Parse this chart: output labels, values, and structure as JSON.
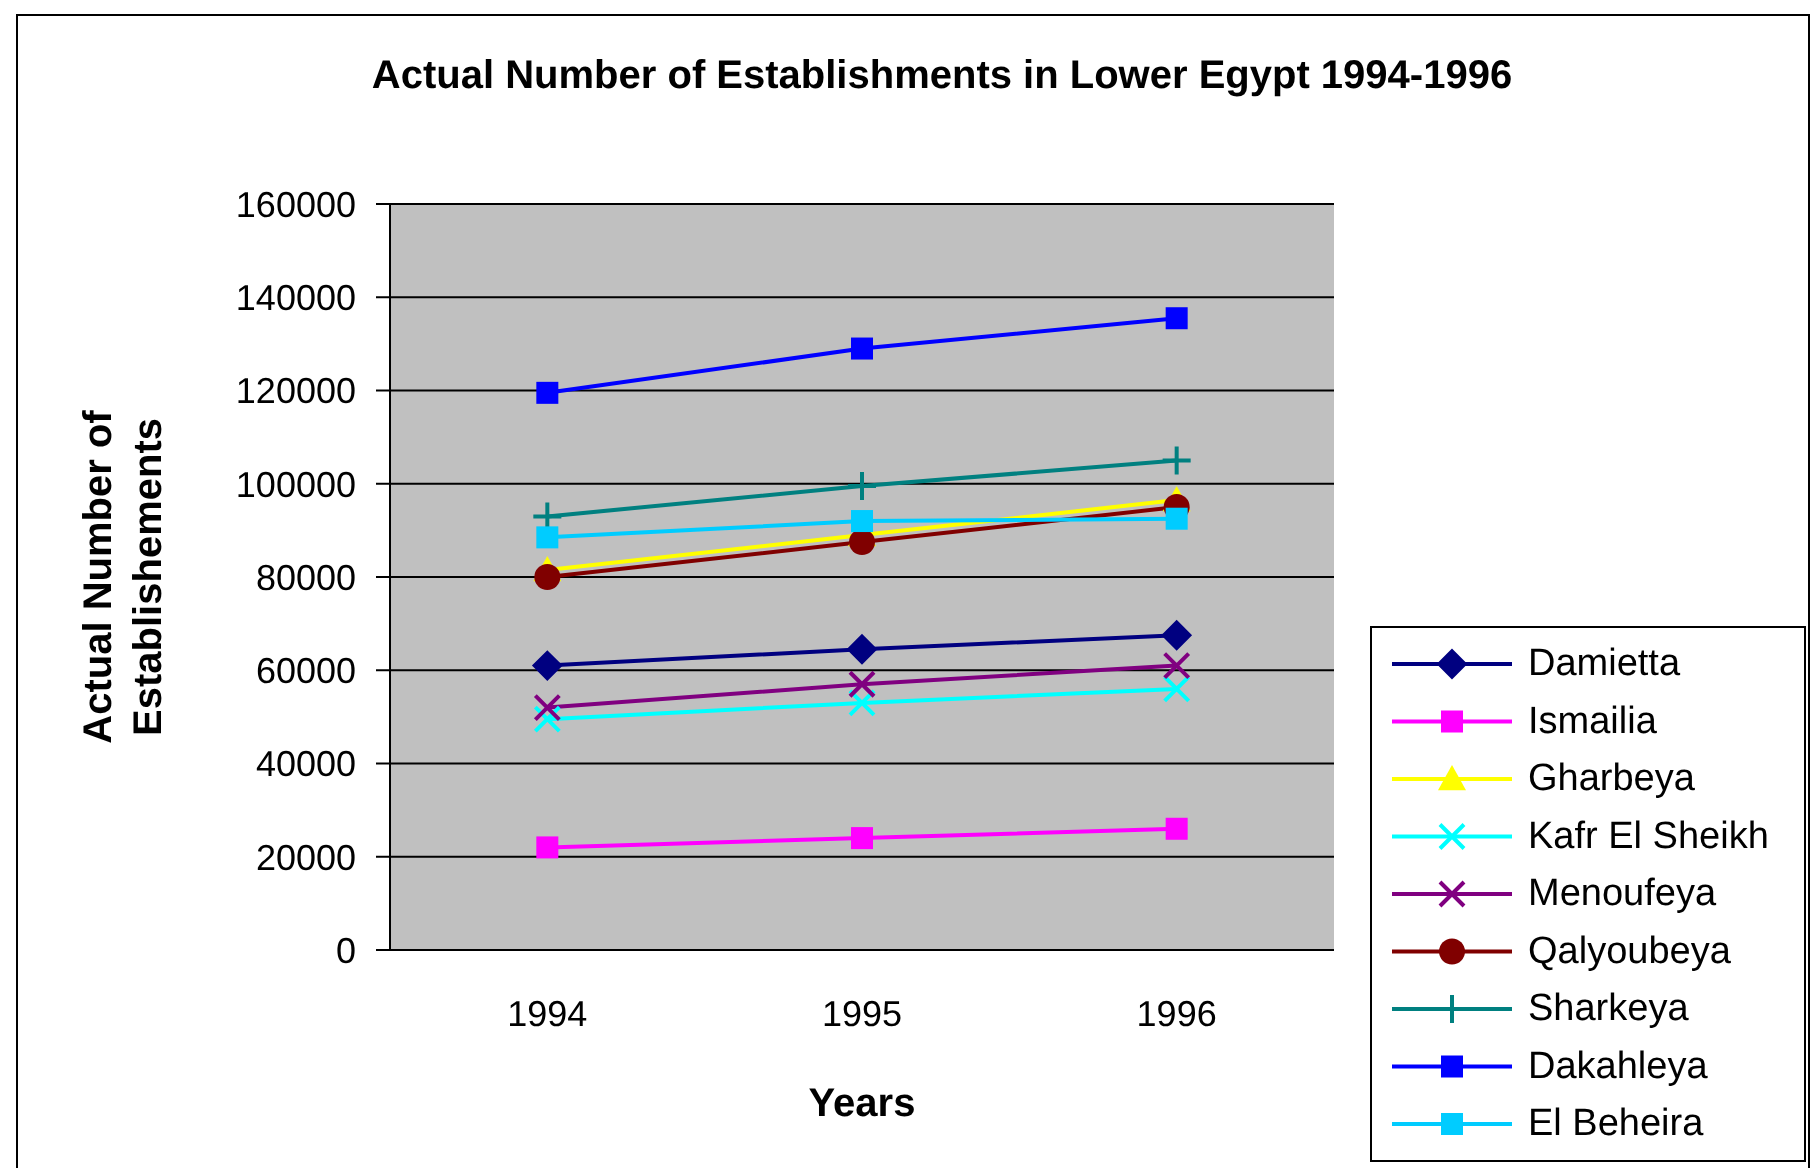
{
  "chart_data": {
    "type": "line",
    "title": "Actual Number of Establishments in Lower Egypt 1994-1996",
    "xlabel": "Years",
    "ylabel": "Actual Number of Establishements",
    "categories": [
      "1994",
      "1995",
      "1996"
    ],
    "series": [
      {
        "name": "Damietta",
        "color": "#000080",
        "marker": "diamond",
        "values": [
          61000,
          64500,
          67500
        ]
      },
      {
        "name": "Ismailia",
        "color": "#ff00ff",
        "marker": "square",
        "values": [
          22000,
          24000,
          26000
        ]
      },
      {
        "name": "Gharbeya",
        "color": "#ffff00",
        "marker": "triangle",
        "values": [
          81500,
          89000,
          96500
        ]
      },
      {
        "name": "Kafr El Sheikh",
        "color": "#00ffff",
        "marker": "cross",
        "values": [
          49500,
          53000,
          56000
        ]
      },
      {
        "name": "Menoufeya",
        "color": "#800080",
        "marker": "cross",
        "values": [
          52000,
          57000,
          61000
        ]
      },
      {
        "name": "Qalyoubeya",
        "color": "#800000",
        "marker": "circle",
        "values": [
          80000,
          87500,
          95000
        ]
      },
      {
        "name": "Sharkeya",
        "color": "#008080",
        "marker": "plus",
        "values": [
          93000,
          99500,
          105000
        ]
      },
      {
        "name": "Dakahleya",
        "color": "#0000ff",
        "marker": "square",
        "values": [
          119500,
          129000,
          135500
        ]
      },
      {
        "name": "El Beheira",
        "color": "#00ccff",
        "marker": "square",
        "values": [
          88500,
          92000,
          92500
        ]
      }
    ],
    "ylim": [
      0,
      160000
    ],
    "yticks": [
      0,
      20000,
      40000,
      60000,
      80000,
      100000,
      120000,
      140000,
      160000
    ],
    "grid": "y",
    "legend": "bottom right",
    "line_style": "solid"
  }
}
